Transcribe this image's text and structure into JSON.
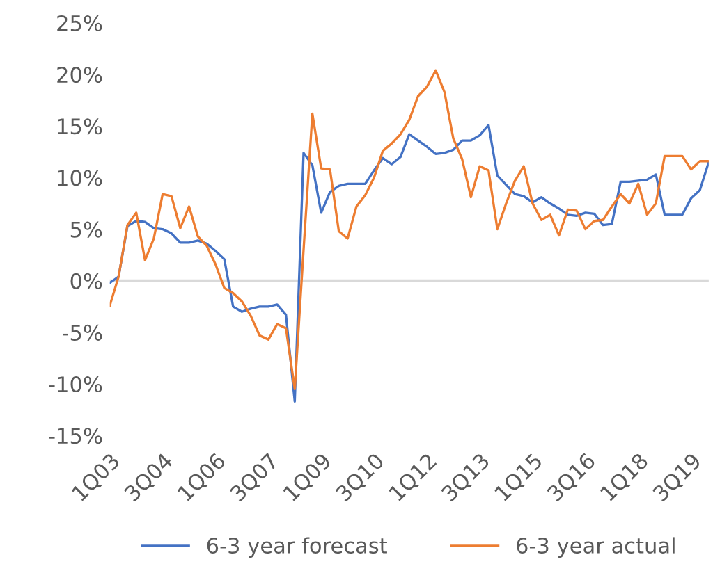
{
  "chart_data": {
    "type": "line",
    "categories": [
      "1Q03",
      null,
      null,
      null,
      null,
      null,
      "3Q04",
      null,
      null,
      null,
      null,
      null,
      "1Q06",
      null,
      null,
      null,
      null,
      null,
      "3Q07",
      null,
      null,
      null,
      null,
      null,
      "1Q09",
      null,
      null,
      null,
      null,
      null,
      "3Q10",
      null,
      null,
      null,
      null,
      null,
      "1Q12",
      null,
      null,
      null,
      null,
      null,
      "3Q13",
      null,
      null,
      null,
      null,
      null,
      "1Q15",
      null,
      null,
      null,
      null,
      null,
      "3Q16",
      null,
      null,
      null,
      null,
      null,
      "1Q18",
      null,
      null,
      null,
      null,
      null,
      "3Q19",
      null,
      null
    ],
    "series": [
      {
        "name": "6-3 year forecast",
        "color": "#4472c4",
        "values": [
          -0.2,
          0.4,
          5.3,
          5.8,
          5.7,
          5.1,
          5.0,
          4.6,
          3.7,
          3.7,
          3.9,
          3.6,
          2.9,
          2.1,
          -2.5,
          -3.0,
          -2.7,
          -2.5,
          -2.5,
          -2.3,
          -3.3,
          -11.7,
          12.4,
          11.2,
          6.6,
          8.6,
          9.2,
          9.4,
          9.4,
          9.4,
          10.7,
          11.9,
          11.3,
          12.0,
          14.2,
          13.6,
          13.0,
          12.3,
          12.4,
          12.7,
          13.6,
          13.6,
          14.1,
          15.1,
          10.2,
          9.3,
          8.4,
          8.2,
          7.6,
          8.1,
          7.5,
          7.0,
          6.4,
          6.3,
          6.6,
          6.5,
          5.4,
          5.5,
          9.6,
          9.6,
          9.7,
          9.8,
          10.3,
          6.4,
          6.4,
          6.4,
          8.0,
          8.8,
          11.5
        ]
      },
      {
        "name": "6-3 year actual",
        "color": "#ed7d31",
        "values": [
          -2.4,
          0.4,
          5.4,
          6.6,
          2.0,
          4.1,
          8.4,
          8.2,
          5.1,
          7.2,
          4.3,
          3.4,
          1.6,
          -0.7,
          -1.2,
          -2.0,
          -3.4,
          -5.3,
          -5.7,
          -4.2,
          -4.6,
          -10.5,
          3.0,
          16.2,
          10.9,
          10.8,
          4.8,
          4.1,
          7.2,
          8.3,
          10.0,
          12.6,
          13.3,
          14.2,
          15.6,
          17.9,
          18.8,
          20.4,
          18.3,
          13.8,
          11.8,
          8.1,
          11.1,
          10.7,
          5.0,
          7.5,
          9.7,
          11.1,
          7.5,
          5.9,
          6.4,
          4.4,
          6.9,
          6.8,
          5.0,
          5.8,
          5.9,
          7.2,
          8.4,
          7.5,
          9.4,
          6.4,
          7.5,
          12.1,
          12.1,
          12.1,
          10.8,
          11.6,
          11.6
        ]
      }
    ],
    "ylim": [
      -15,
      25
    ],
    "yticks": [
      {
        "value": -15,
        "label": "-15%"
      },
      {
        "value": -10,
        "label": "-10%"
      },
      {
        "value": -5,
        "label": "-5%"
      },
      {
        "value": 0,
        "label": "0%"
      },
      {
        "value": 5,
        "label": "5%"
      },
      {
        "value": 10,
        "label": "10%"
      },
      {
        "value": 15,
        "label": "15%"
      },
      {
        "value": 20,
        "label": "20%"
      },
      {
        "value": 25,
        "label": "25%"
      }
    ],
    "ref_lines": [
      {
        "axis": "y",
        "value": 0,
        "color": "#d9d9d9"
      }
    ],
    "grid": false,
    "legend": "bottom",
    "marker": "none",
    "line_style": "solid"
  }
}
